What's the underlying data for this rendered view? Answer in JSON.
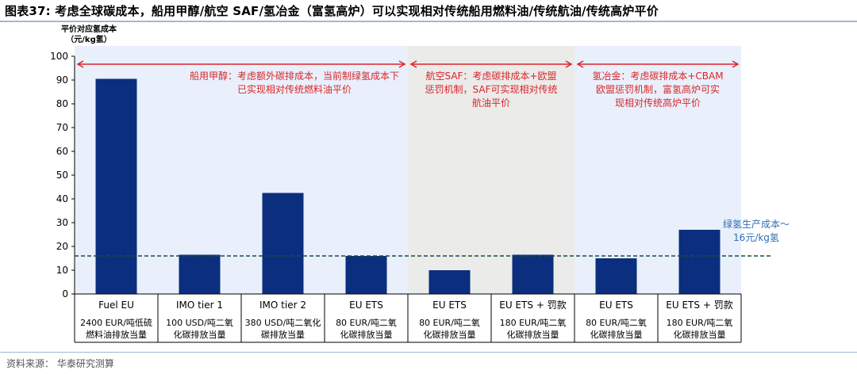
{
  "figure": {
    "title": "图表37:  考虑全球碳成本，船用甲醇/航空 SAF/氢冶金（富氢高炉）可以实现相对传统船用燃料油/传统航油/传统高炉平价",
    "source": "资料来源：  华泰研究测算"
  },
  "colors": {
    "bar": "#0b2f7e",
    "annotation": "#d9262b",
    "band_light_blue": "#e9f0fb",
    "band_gray": "#ebebe9",
    "threshold_line": "#1f4a3a",
    "threshold_label": "#2f6db5"
  },
  "chart_data": {
    "type": "bar",
    "ylabel": "平价对应氢成本\n（元/kg氢）",
    "ylim": [
      0,
      100
    ],
    "yticks": [
      0,
      10,
      20,
      30,
      40,
      50,
      60,
      70,
      80,
      90,
      100
    ],
    "grid": false,
    "categories": [
      {
        "name": "Fuel EU",
        "sub": [
          "2400 EUR/吨低硫",
          "燃料油排放当量"
        ]
      },
      {
        "name": "IMO tier 1",
        "sub": [
          "100 USD/吨二氧",
          "化碳排放当量"
        ]
      },
      {
        "name": "IMO tier 2",
        "sub": [
          "380 USD/吨二氧化",
          "碳排放当量"
        ]
      },
      {
        "name": "EU ETS",
        "sub": [
          "80 EUR/吨二氧",
          "化碳排放当量"
        ]
      },
      {
        "name": "EU ETS",
        "sub": [
          "80 EUR/吨二氧",
          "化碳排放当量"
        ]
      },
      {
        "name": "EU ETS + 罚款",
        "sub": [
          "180 EUR/吨二氧",
          "化碳排放当量"
        ]
      },
      {
        "name": "EU ETS",
        "sub": [
          "80 EUR/吨二氧",
          "化碳排放当量"
        ]
      },
      {
        "name": "EU ETS + 罚款",
        "sub": [
          "180 EUR/吨二氧",
          "化碳排放当量"
        ]
      }
    ],
    "values": [
      90.5,
      16.5,
      42.5,
      16,
      10,
      16.5,
      15,
      27
    ],
    "threshold": {
      "value": 16,
      "label": [
        "绿氢生产成本～",
        "16元/kg氢"
      ]
    },
    "groups": [
      {
        "from": 0,
        "to": 3,
        "label": [
          "船用甲醇：考虑额外碳排成本，当前制绿氢成本下",
          "已实现相对传统燃料油平价"
        ]
      },
      {
        "from": 4,
        "to": 5,
        "label": [
          "航空SAF：考虑碳排成本+欧盟",
          "惩罚机制，SAF可实现相对传统",
          "航油平价"
        ]
      },
      {
        "from": 6,
        "to": 7,
        "label": [
          "氢冶金：考虑碳排成本+CBAM",
          "欧盟惩罚机制，富氢高炉可实",
          "现相对传统高炉平价"
        ]
      }
    ]
  }
}
